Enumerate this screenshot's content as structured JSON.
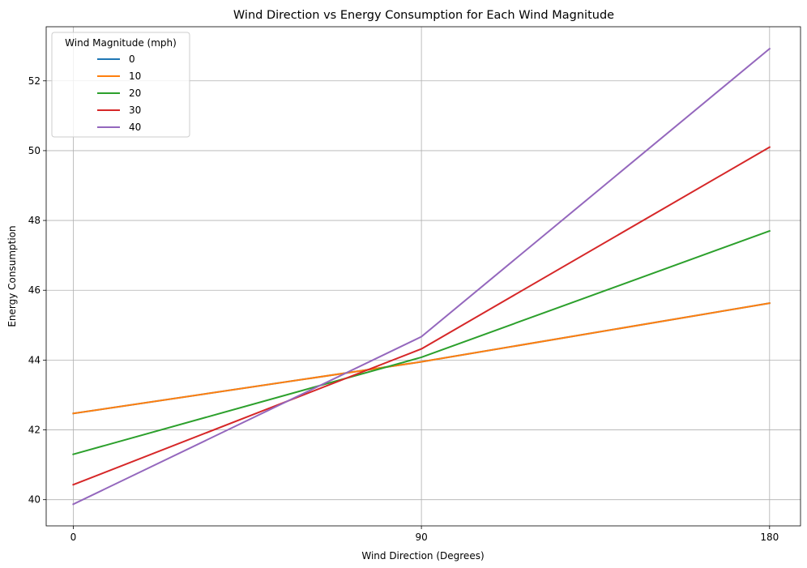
{
  "chart_data": {
    "type": "line",
    "title": "Wind Direction vs Energy Consumption for Each Wind Magnitude",
    "xlabel": "Wind Direction (Degrees)",
    "ylabel": "Energy Consumption",
    "x": [
      0,
      90,
      180
    ],
    "xticks": [
      0,
      90,
      180
    ],
    "xtick_labels": [
      "0",
      "90",
      "180"
    ],
    "yticks": [
      40,
      42,
      44,
      46,
      48,
      50,
      52
    ],
    "ytick_labels": [
      "40",
      "42",
      "44",
      "46",
      "48",
      "50",
      "52"
    ],
    "xlim": [
      -7,
      188
    ],
    "ylim": [
      39.25,
      53.55
    ],
    "grid": true,
    "legend": {
      "title": "Wind Magnitude (mph)",
      "placement": "top-left"
    },
    "series": [
      {
        "name": "0",
        "color": "#1f77b4",
        "values": [
          42.47,
          43.95,
          45.63
        ]
      },
      {
        "name": "10",
        "color": "#ff7f0e",
        "values": [
          42.47,
          43.95,
          45.63
        ]
      },
      {
        "name": "20",
        "color": "#2ca02c",
        "values": [
          41.3,
          44.08,
          47.7
        ]
      },
      {
        "name": "30",
        "color": "#d62728",
        "values": [
          40.43,
          44.32,
          50.1
        ]
      },
      {
        "name": "40",
        "color": "#9467bd",
        "values": [
          39.87,
          44.67,
          52.92
        ]
      }
    ]
  }
}
